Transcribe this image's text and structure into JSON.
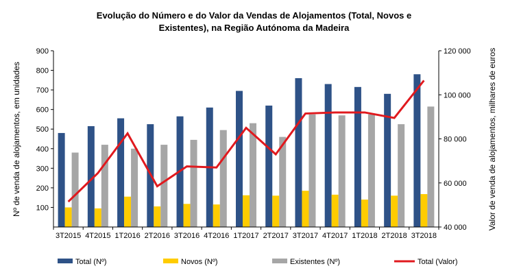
{
  "chart_data": {
    "type": "bar",
    "title_lines": [
      "Evolução do Número e do Valor da Vendas de Alojamentos (Total, Novos  e",
      "Existentes),  na Região Autónoma  da Madeira"
    ],
    "categories": [
      "3T2015",
      "4T2015",
      "1T2016",
      "2T2016",
      "3T2016",
      "4T2016",
      "1T2017",
      "2T2017",
      "3T2017",
      "4T2017",
      "1T2018",
      "2T2018",
      "3T2018"
    ],
    "series": [
      {
        "name": "Total (Nº)",
        "type": "bar",
        "axis": "left",
        "color": "#2E5287",
        "values": [
          480,
          515,
          555,
          525,
          565,
          610,
          695,
          620,
          760,
          730,
          715,
          680,
          780
        ]
      },
      {
        "name": "Novos (Nº)",
        "type": "bar",
        "axis": "left",
        "color": "#FFCC00",
        "values": [
          100,
          95,
          155,
          105,
          118,
          115,
          162,
          160,
          185,
          165,
          140,
          160,
          168
        ]
      },
      {
        "name": "Existentes (Nº)",
        "type": "bar",
        "axis": "left",
        "color": "#A6A6A6",
        "values": [
          380,
          420,
          400,
          420,
          445,
          495,
          530,
          460,
          575,
          570,
          575,
          525,
          615
        ]
      },
      {
        "name": "Total (Valor)",
        "type": "line",
        "axis": "right",
        "color": "#E0191E",
        "values": [
          51500,
          64500,
          82500,
          58500,
          67500,
          67000,
          85000,
          73000,
          91500,
          92000,
          92000,
          89500,
          106500
        ]
      }
    ],
    "ylabel": "Nº de venda de alojamentos, em unidades",
    "y2label": "Valor de venda de alojamentos, milhares de euros",
    "ylim": [
      0,
      900
    ],
    "yticks": [
      100,
      200,
      300,
      400,
      500,
      600,
      700,
      800,
      900
    ],
    "y2lim": [
      40000,
      120000
    ],
    "y2ticks": [
      "40 000",
      "60 000",
      "80 000",
      "100 000",
      "120 000"
    ],
    "y2tick_values": [
      40000,
      60000,
      80000,
      100000,
      120000
    ],
    "grid": false,
    "legend_position": "bottom"
  }
}
